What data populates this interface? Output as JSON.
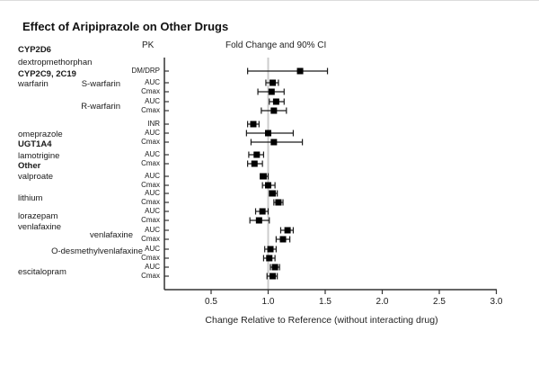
{
  "title": "Effect of Aripiprazole on Other Drugs",
  "chart_data": {
    "type": "forest",
    "title": "Effect of Aripiprazole on Other Drugs",
    "column_headers": {
      "pk": "PK",
      "fold": "Fold Change and 90% CI"
    },
    "xlabel": "Change Relative to Reference (without interacting drug)",
    "xticks": [
      0.5,
      1.0,
      1.5,
      2.0,
      2.5,
      3.0
    ],
    "xlim": [
      0.09,
      3.0
    ],
    "reference_line": 1.0,
    "grid": false,
    "side_labels": [
      {
        "text": "CYP2D6",
        "bold": true
      },
      {
        "text": "dextropmethorphan",
        "bold": false
      },
      {
        "text": "CYP2C9, 2C19",
        "bold": true
      },
      {
        "text": "warfarin",
        "bold": false
      },
      {
        "text": "omeprazole",
        "bold": false
      },
      {
        "text": "UGT1A4",
        "bold": true
      },
      {
        "text": "lamotrigine",
        "bold": false
      },
      {
        "text": "Other",
        "bold": true
      },
      {
        "text": "valproate",
        "bold": false
      },
      {
        "text": "lithium",
        "bold": false
      },
      {
        "text": "lorazepam",
        "bold": false
      },
      {
        "text": "venlafaxine",
        "bold": false
      },
      {
        "text": "escitalopram",
        "bold": false
      }
    ],
    "mid_labels": [
      "S-warfarin",
      "R-warfarin",
      "venlafaxine",
      "O-desmethylvenlafaxine"
    ],
    "rows": [
      {
        "group": "dextropmethorphan",
        "pk": "DM/DRP",
        "est": 1.28,
        "lo": 0.82,
        "hi": 1.52
      },
      {
        "group": "S-warfarin",
        "pk": "AUC",
        "est": 1.04,
        "lo": 0.98,
        "hi": 1.09
      },
      {
        "group": "S-warfarin",
        "pk": "Cmax",
        "est": 1.03,
        "lo": 0.91,
        "hi": 1.14
      },
      {
        "group": "R-warfarin",
        "pk": "AUC",
        "est": 1.07,
        "lo": 1.01,
        "hi": 1.14
      },
      {
        "group": "R-warfarin",
        "pk": "Cmax",
        "est": 1.05,
        "lo": 0.94,
        "hi": 1.16
      },
      {
        "group": "warfarin",
        "pk": "INR",
        "est": 0.87,
        "lo": 0.82,
        "hi": 0.92
      },
      {
        "group": "omeprazole",
        "pk": "AUC",
        "est": 1.0,
        "lo": 0.81,
        "hi": 1.22
      },
      {
        "group": "omeprazole",
        "pk": "Cmax",
        "est": 1.05,
        "lo": 0.85,
        "hi": 1.3
      },
      {
        "group": "lamotrigine",
        "pk": "AUC",
        "est": 0.9,
        "lo": 0.83,
        "hi": 0.96
      },
      {
        "group": "lamotrigine",
        "pk": "Cmax",
        "est": 0.88,
        "lo": 0.82,
        "hi": 0.95
      },
      {
        "group": "valproate",
        "pk": "AUC",
        "est": 0.96,
        "lo": 0.93,
        "hi": 1.0
      },
      {
        "group": "valproate",
        "pk": "Cmax",
        "est": 1.0,
        "lo": 0.95,
        "hi": 1.06
      },
      {
        "group": "lithium",
        "pk": "AUC",
        "est": 1.04,
        "lo": 1.01,
        "hi": 1.08
      },
      {
        "group": "lithium",
        "pk": "Cmax",
        "est": 1.09,
        "lo": 1.05,
        "hi": 1.13
      },
      {
        "group": "lorazepam",
        "pk": "AUC",
        "est": 0.95,
        "lo": 0.89,
        "hi": 1.0
      },
      {
        "group": "lorazepam",
        "pk": "Cmax",
        "est": 0.92,
        "lo": 0.84,
        "hi": 1.01
      },
      {
        "group": "venlafaxine",
        "pk": "AUC",
        "est": 1.17,
        "lo": 1.11,
        "hi": 1.22
      },
      {
        "group": "venlafaxine",
        "pk": "Cmax",
        "est": 1.13,
        "lo": 1.07,
        "hi": 1.19
      },
      {
        "group": "O-desmethylvenlafaxine",
        "pk": "AUC",
        "est": 1.02,
        "lo": 0.97,
        "hi": 1.07
      },
      {
        "group": "O-desmethylvenlafaxine",
        "pk": "Cmax",
        "est": 1.01,
        "lo": 0.96,
        "hi": 1.06
      },
      {
        "group": "escitalopram",
        "pk": "AUC",
        "est": 1.06,
        "lo": 1.02,
        "hi": 1.1
      },
      {
        "group": "escitalopram",
        "pk": "Cmax",
        "est": 1.04,
        "lo": 0.99,
        "hi": 1.08
      }
    ]
  },
  "colors": {
    "marker": "#000000",
    "ci_line": "#1a1a1a",
    "axis": "#333333",
    "reference_line": "#cccccc",
    "text": "#1a1a1a"
  }
}
